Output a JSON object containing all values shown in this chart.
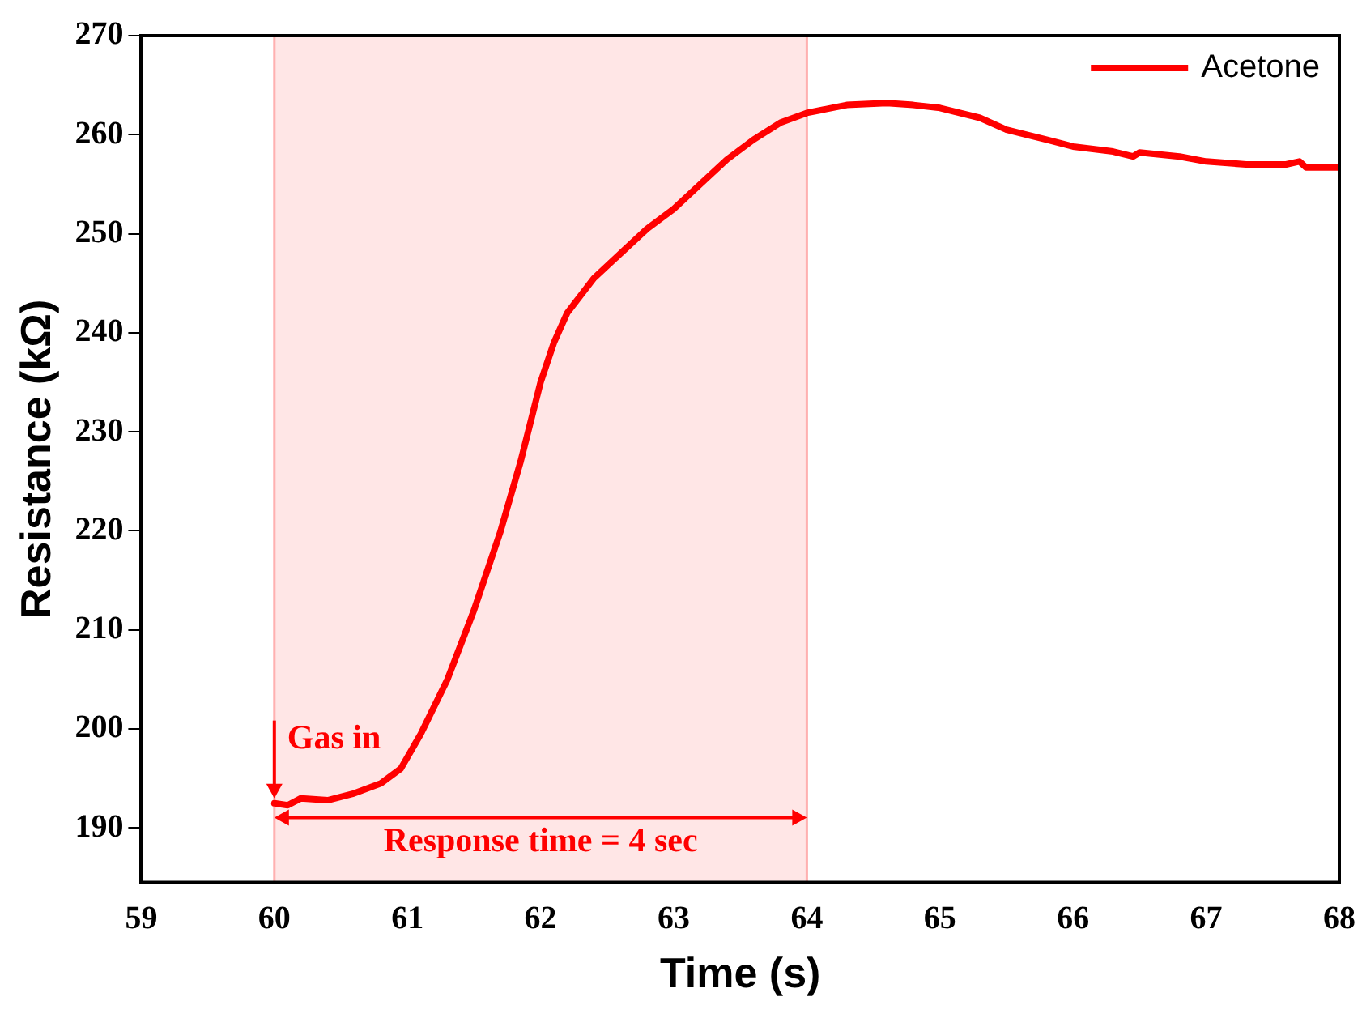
{
  "chart_data": {
    "type": "line",
    "xlabel": "Time (s)",
    "ylabel": "Resistance (kΩ)",
    "xlim": [
      59,
      68
    ],
    "xticks": [
      59,
      60,
      61,
      62,
      63,
      64,
      65,
      66,
      67,
      68
    ],
    "ylim": [
      184.5,
      270
    ],
    "yticks": [
      190,
      200,
      210,
      220,
      230,
      240,
      250,
      260,
      270
    ],
    "grid": false,
    "legend": "top right",
    "marker": "none",
    "line_style": "solid",
    "series": [
      {
        "name": "Acetone",
        "color": "#ff0000",
        "x": [
          60,
          60.1,
          60.2,
          60.4,
          60.6,
          60.8,
          60.95,
          61.1,
          61.3,
          61.5,
          61.7,
          61.85,
          62.0,
          62.1,
          62.2,
          62.4,
          62.6,
          62.8,
          63.0,
          63.2,
          63.4,
          63.6,
          63.8,
          64.0,
          64.3,
          64.6,
          64.8,
          65.0,
          65.3,
          65.5,
          65.8,
          66.0,
          66.3,
          66.45,
          66.5,
          66.8,
          67.0,
          67.3,
          67.6,
          67.7,
          67.75,
          68
        ],
        "values": [
          192.5,
          192.3,
          193,
          192.8,
          193.5,
          194.5,
          196,
          199.5,
          205,
          212,
          220,
          227,
          235,
          239,
          242,
          245.5,
          248,
          250.5,
          252.5,
          255,
          257.5,
          259.5,
          261.2,
          262.2,
          263,
          263.2,
          263,
          262.7,
          261.7,
          260.5,
          259.5,
          258.8,
          258.3,
          257.8,
          258.2,
          257.8,
          257.3,
          257,
          257,
          257.3,
          256.7,
          256.7
        ]
      }
    ],
    "bands": [
      {
        "axis": "x",
        "from": 60,
        "to": 64,
        "color": "#ffd6d6"
      }
    ],
    "annotations": [
      {
        "text": "Gas in",
        "x": 60,
        "y": 193
      },
      "Response time = 4 sec"
    ]
  }
}
